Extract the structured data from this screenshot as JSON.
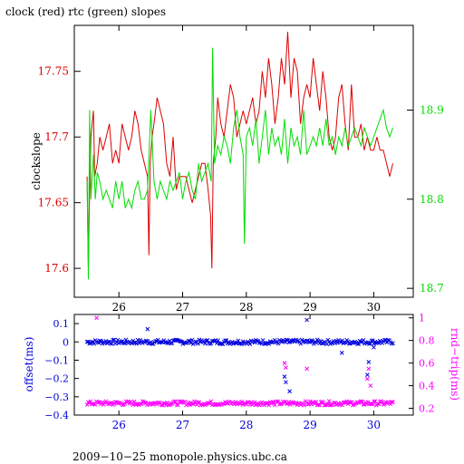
{
  "chart_data": [
    {
      "type": "line",
      "title": "clock (red) rtc (green) slopes",
      "ylabel": "clockslope",
      "xlim": [
        25.3,
        30.62
      ],
      "ylim": [
        17.578,
        17.785
      ],
      "y2lim": [
        18.69,
        18.995
      ],
      "x_ticks": [
        26,
        27,
        28,
        29,
        30
      ],
      "y_ticks": [
        17.6,
        17.65,
        17.7,
        17.75
      ],
      "y2_ticks": [
        18.7,
        18.8,
        18.9
      ],
      "x_tick_labels": [
        "26",
        "27",
        "28",
        "29",
        "30"
      ],
      "y_tick_labels": [
        "17.6",
        "17.65",
        "17.7",
        "17.75"
      ],
      "y2_tick_labels": [
        "18.7",
        "18.8",
        "18.9"
      ],
      "colors": {
        "clock": "#dd0000",
        "rtc": "#00dd00",
        "axis": "#000000"
      },
      "series": [
        {
          "name": "clock",
          "axis": "left",
          "color": "#dd0000",
          "x": [
            25.5,
            25.52,
            25.54,
            25.56,
            25.6,
            25.62,
            25.66,
            25.7,
            25.75,
            25.8,
            25.85,
            25.9,
            25.95,
            26.0,
            26.05,
            26.1,
            26.15,
            26.2,
            26.25,
            26.3,
            26.35,
            26.4,
            26.45,
            26.47,
            26.49,
            26.52,
            26.55,
            26.6,
            26.65,
            26.7,
            26.75,
            26.8,
            26.85,
            26.9,
            26.95,
            27.0,
            27.05,
            27.1,
            27.15,
            27.2,
            27.25,
            27.3,
            27.35,
            27.4,
            27.44,
            27.46,
            27.48,
            27.52,
            27.55,
            27.6,
            27.65,
            27.7,
            27.75,
            27.8,
            27.85,
            27.9,
            27.95,
            28.0,
            28.05,
            28.1,
            28.15,
            28.2,
            28.25,
            28.3,
            28.35,
            28.4,
            28.45,
            28.5,
            28.55,
            28.6,
            28.65,
            28.7,
            28.75,
            28.8,
            28.85,
            28.9,
            28.95,
            29.0,
            29.05,
            29.1,
            29.15,
            29.2,
            29.25,
            29.3,
            29.35,
            29.4,
            29.45,
            29.5,
            29.55,
            29.6,
            29.65,
            29.7,
            29.75,
            29.8,
            29.85,
            29.9,
            29.95,
            30.0,
            30.05,
            30.1,
            30.15,
            30.2,
            30.25,
            30.3
          ],
          "y": [
            17.67,
            17.6,
            17.66,
            17.7,
            17.72,
            17.67,
            17.68,
            17.7,
            17.69,
            17.7,
            17.71,
            17.68,
            17.69,
            17.68,
            17.71,
            17.7,
            17.69,
            17.7,
            17.72,
            17.71,
            17.69,
            17.68,
            17.67,
            17.61,
            17.68,
            17.7,
            17.71,
            17.73,
            17.72,
            17.71,
            17.68,
            17.67,
            17.7,
            17.66,
            17.67,
            17.67,
            17.67,
            17.66,
            17.65,
            17.66,
            17.67,
            17.68,
            17.68,
            17.66,
            17.64,
            17.6,
            17.68,
            17.7,
            17.73,
            17.71,
            17.7,
            17.72,
            17.74,
            17.73,
            17.7,
            17.71,
            17.72,
            17.71,
            17.72,
            17.73,
            17.71,
            17.72,
            17.75,
            17.73,
            17.76,
            17.74,
            17.71,
            17.73,
            17.76,
            17.74,
            17.78,
            17.73,
            17.76,
            17.75,
            17.71,
            17.73,
            17.74,
            17.73,
            17.76,
            17.74,
            17.72,
            17.75,
            17.73,
            17.7,
            17.69,
            17.7,
            17.73,
            17.74,
            17.71,
            17.69,
            17.74,
            17.7,
            17.7,
            17.71,
            17.69,
            17.7,
            17.69,
            17.69,
            17.7,
            17.69,
            17.69,
            17.68,
            17.67,
            17.68
          ]
        },
        {
          "name": "rtc",
          "axis": "right",
          "color": "#00dd00",
          "x": [
            25.5,
            25.52,
            25.54,
            25.56,
            25.6,
            25.63,
            25.66,
            25.7,
            25.75,
            25.8,
            25.85,
            25.9,
            25.95,
            26.0,
            26.05,
            26.1,
            26.15,
            26.2,
            26.25,
            26.3,
            26.35,
            26.4,
            26.45,
            26.5,
            26.55,
            26.6,
            26.65,
            26.7,
            26.75,
            26.8,
            26.85,
            26.9,
            26.95,
            27.0,
            27.05,
            27.1,
            27.15,
            27.2,
            27.25,
            27.3,
            27.35,
            27.4,
            27.45,
            27.47,
            27.5,
            27.55,
            27.6,
            27.65,
            27.7,
            27.75,
            27.8,
            27.85,
            27.9,
            27.95,
            27.97,
            28.0,
            28.05,
            28.1,
            28.15,
            28.2,
            28.25,
            28.3,
            28.35,
            28.4,
            28.45,
            28.5,
            28.55,
            28.6,
            28.65,
            28.7,
            28.75,
            28.8,
            28.85,
            28.9,
            28.95,
            29.0,
            29.05,
            29.1,
            29.15,
            29.2,
            29.25,
            29.3,
            29.35,
            29.4,
            29.45,
            29.5,
            29.55,
            29.6,
            29.65,
            29.7,
            29.75,
            29.8,
            29.85,
            29.9,
            29.95,
            30.0,
            30.05,
            30.1,
            30.15,
            30.2,
            30.25,
            30.3
          ],
          "y": [
            18.82,
            18.71,
            18.9,
            18.8,
            18.85,
            18.8,
            18.83,
            18.82,
            18.8,
            18.81,
            18.8,
            18.79,
            18.82,
            18.8,
            18.82,
            18.79,
            18.8,
            18.79,
            18.81,
            18.82,
            18.8,
            18.8,
            18.81,
            18.9,
            18.82,
            18.8,
            18.82,
            18.81,
            18.8,
            18.82,
            18.81,
            18.82,
            18.83,
            18.8,
            18.82,
            18.83,
            18.81,
            18.8,
            18.84,
            18.82,
            18.83,
            18.84,
            18.82,
            18.97,
            18.84,
            18.86,
            18.85,
            18.87,
            18.86,
            18.84,
            18.88,
            18.9,
            18.87,
            18.85,
            18.75,
            18.87,
            18.88,
            18.86,
            18.89,
            18.84,
            18.87,
            18.9,
            18.85,
            18.88,
            18.86,
            18.87,
            18.85,
            18.89,
            18.84,
            18.88,
            18.86,
            18.87,
            18.85,
            18.9,
            18.85,
            18.86,
            18.87,
            18.86,
            18.88,
            18.86,
            18.89,
            18.86,
            18.87,
            18.85,
            18.87,
            18.86,
            18.88,
            18.86,
            18.87,
            18.88,
            18.87,
            18.86,
            18.88,
            18.87,
            18.86,
            18.87,
            18.88,
            18.89,
            18.9,
            18.88,
            18.87,
            18.88
          ]
        }
      ]
    },
    {
      "type": "scatter",
      "ylabel": "offset(ms)",
      "y2label": "rnd−trip(ms)",
      "xlim": [
        25.3,
        30.62
      ],
      "ylim": [
        -0.4,
        0.15
      ],
      "y2lim": [
        0.14,
        1.03
      ],
      "x_ticks": [
        26,
        27,
        28,
        29,
        30
      ],
      "y_ticks": [
        0.1,
        0,
        -0.1,
        -0.2,
        -0.3,
        -0.4
      ],
      "y2_ticks": [
        0.2,
        0.4,
        0.6,
        0.8,
        1
      ],
      "x_tick_labels": [
        "26",
        "27",
        "28",
        "29",
        "30"
      ],
      "y_tick_labels": [
        "0.1",
        "0",
        "−0.1",
        "−0.2",
        "−0.3",
        "−0.4"
      ],
      "y2_tick_labels": [
        "0.2",
        "0.4",
        "0.6",
        "0.8",
        "1"
      ],
      "colors": {
        "offset": "#0000dd",
        "rnd_trip": "#ff00ff"
      },
      "series": [
        {
          "name": "offset",
          "axis": "left",
          "color": "#0000dd",
          "x_range": [
            25.5,
            30.3
          ],
          "typical_value": 0.0,
          "spread": 0.012,
          "outliers": [
            {
              "x": 26.45,
              "y": 0.07
            },
            {
              "x": 28.6,
              "y": -0.19
            },
            {
              "x": 28.62,
              "y": -0.22
            },
            {
              "x": 28.68,
              "y": -0.27
            },
            {
              "x": 28.95,
              "y": 0.12
            },
            {
              "x": 29.5,
              "y": -0.06
            },
            {
              "x": 29.9,
              "y": -0.18
            },
            {
              "x": 29.92,
              "y": -0.11
            },
            {
              "x": 30.0,
              "y": -0.03
            }
          ]
        },
        {
          "name": "rnd-trip",
          "axis": "right",
          "color": "#ff00ff",
          "x_range": [
            25.5,
            30.3
          ],
          "typical_value": 0.245,
          "spread": 0.018,
          "outliers": [
            {
              "x": 25.65,
              "y": 1.0
            },
            {
              "x": 28.6,
              "y": 0.6
            },
            {
              "x": 28.62,
              "y": 0.56
            },
            {
              "x": 28.95,
              "y": 0.55
            },
            {
              "x": 29.9,
              "y": 0.46
            },
            {
              "x": 29.92,
              "y": 0.55
            },
            {
              "x": 29.95,
              "y": 0.4
            }
          ]
        }
      ]
    }
  ],
  "footer": "2009−10−25  monopole.physics.ubc.ca"
}
